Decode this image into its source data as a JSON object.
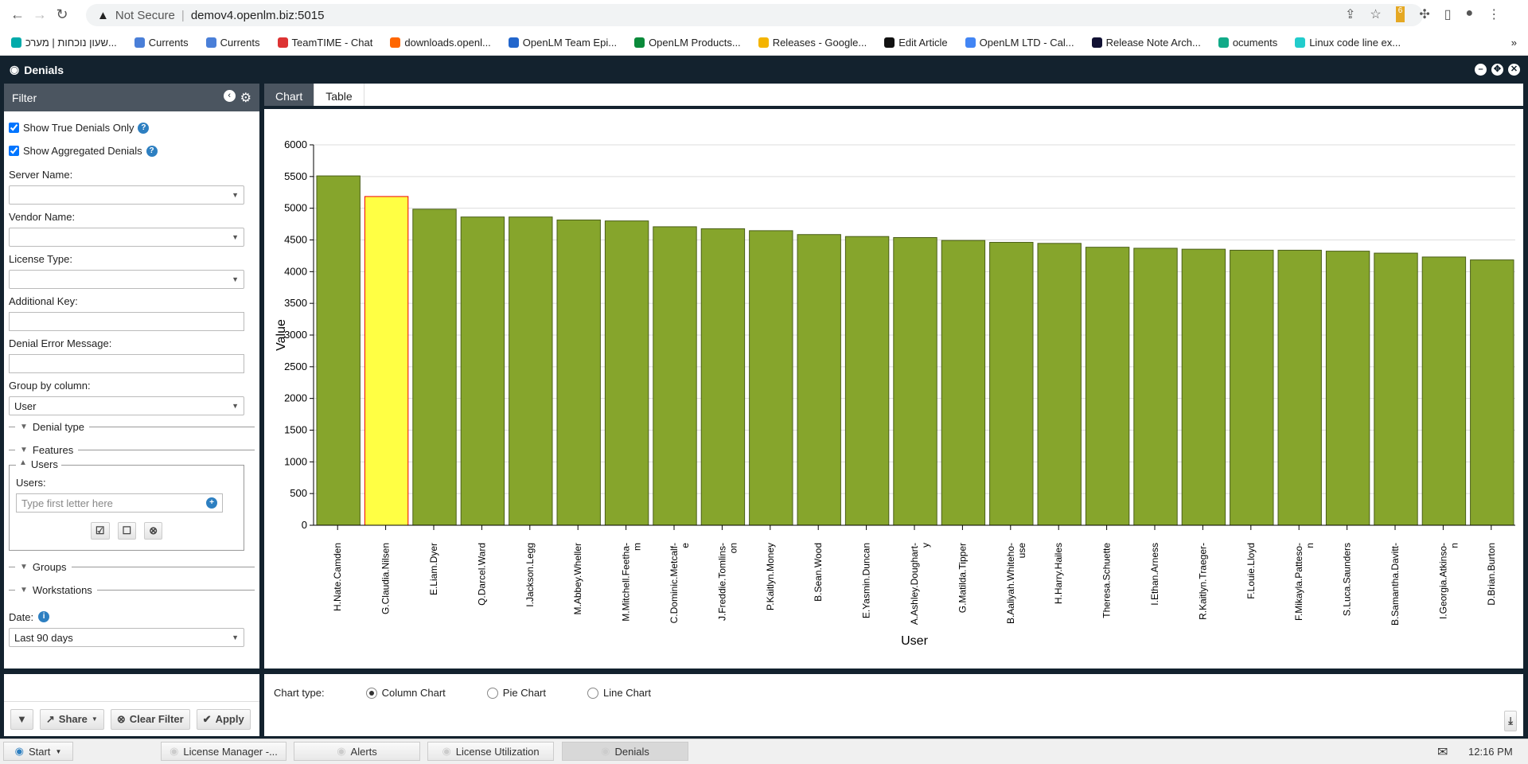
{
  "browser": {
    "security": "Not Secure",
    "url": "demov4.openlm.biz:5015",
    "bookmarks": [
      "שעון נוכחות | מערכ...",
      "Currents",
      "Currents",
      "TeamTIME - Chat",
      "downloads.openl...",
      "OpenLM Team Epi...",
      "OpenLM Products...",
      "Releases - Google...",
      "Edit Article",
      "OpenLM LTD - Cal...",
      "Release Note Arch...",
      "ocuments",
      "Linux code line ex..."
    ],
    "more": "»",
    "ext_badge": "6"
  },
  "app": {
    "title": "Denials"
  },
  "filter": {
    "title": "Filter",
    "show_true": "Show True Denials Only",
    "show_agg": "Show Aggregated Denials",
    "server_label": "Server Name:",
    "vendor_label": "Vendor Name:",
    "license_label": "License Type:",
    "additional_label": "Additional Key:",
    "error_label": "Denial Error Message:",
    "group_label": "Group by column:",
    "group_value": "User",
    "sections": {
      "denial_type": "Denial type",
      "features": "Features",
      "users": "Users",
      "groups": "Groups",
      "workstations": "Workstations"
    },
    "users_label": "Users:",
    "users_placeholder": "Type first letter here",
    "date_label": "Date:",
    "date_value": "Last 90 days",
    "share": "Share",
    "clear": "Clear Filter",
    "apply": "Apply"
  },
  "tabs": [
    "Chart",
    "Table"
  ],
  "options": {
    "label": "Chart type:",
    "types": [
      "Column Chart",
      "Pie Chart",
      "Line Chart"
    ],
    "selected": "Column Chart"
  },
  "taskbar": {
    "start": "Start",
    "items": [
      "License Manager -...",
      "Alerts",
      "License Utilization",
      "Denials"
    ],
    "time": "12:16 PM"
  },
  "chart_data": {
    "type": "bar",
    "xlabel": "User",
    "ylabel": "Value",
    "ylim": [
      0,
      6000
    ],
    "yticks": [
      0,
      500,
      1000,
      1500,
      2000,
      2500,
      3000,
      3500,
      4000,
      4500,
      5000,
      5500,
      6000
    ],
    "grid": true,
    "bar_color": "#86a52c",
    "highlight_color": "#ffff44",
    "highlight_index": 1,
    "categories": [
      "H.Nate.Camden",
      "G.Claudia.Nilsen",
      "E.Liam.Dyer",
      "Q.Darcel.Ward",
      "I.Jackson.Legg",
      "M.Abbey.Wheller",
      "M.Mitchell.Feetha-m",
      "C.Dominic.Metcalf-e",
      "J.Freddie.Tomlins-on",
      "P.Kaitlyn.Money",
      "B.Sean.Wood",
      "E.Yasmin.Duncan",
      "A.Ashley.Doughart-y",
      "G.Matilda.Tipper",
      "B.Aaliyah.Whiteho-use",
      "H.Harry.Hailes",
      "Theresa.Schuette",
      "I.Ethan.Arness",
      "R.Kaitlyn.Traeger-",
      "F.Louie.Lloyd",
      "F.Mikayla.Patteso-n",
      "S.Luca.Saunders",
      "B.Samantha.Davitt-",
      "I.Georgia.Atkinso-n",
      "D.Brian.Burton"
    ],
    "values": [
      5510,
      5185,
      4985,
      4862,
      4862,
      4815,
      4800,
      4708,
      4677,
      4646,
      4585,
      4554,
      4538,
      4492,
      4462,
      4446,
      4385,
      4369,
      4354,
      4338,
      4338,
      4323,
      4292,
      4231,
      4185
    ]
  }
}
